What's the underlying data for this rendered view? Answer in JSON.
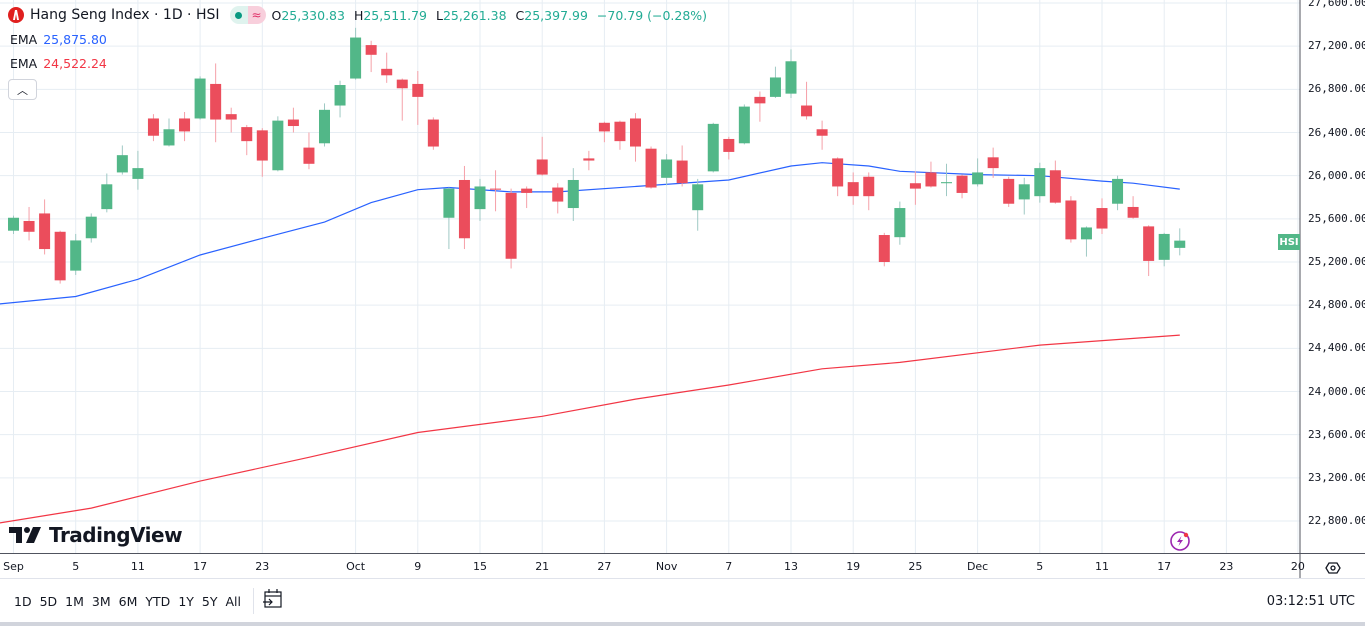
{
  "header": {
    "title": "Hang Seng Index · 1D · HSI",
    "ohlc": {
      "o_label": "O",
      "o": "25,330.83",
      "h_label": "H",
      "h": "25,511.79",
      "l_label": "L",
      "l": "25,261.38",
      "c_label": "C",
      "c": "25,397.99",
      "change": "−70.79 (−0.28%)"
    },
    "market_status_icon": "green-dot-icon",
    "data_icon": "approx-icon"
  },
  "indicators": [
    {
      "label": "EMA",
      "value": "25,875.80",
      "color": "#2962ff"
    },
    {
      "label": "EMA",
      "value": "24,522.24",
      "color": "#f23645"
    }
  ],
  "collapse_icon": "chevron-up-icon",
  "watermark": "TradingView",
  "price_badge": "HSI",
  "colors": {
    "up": "#52b788",
    "down": "#eb4d5c",
    "grid": "#e6edf3"
  },
  "chart_data": {
    "type": "candlestick",
    "symbol": "HSI",
    "ylim": [
      22800,
      27600
    ],
    "y_ticks": [
      "27,600.00",
      "27,200.00",
      "26,800.00",
      "26,400.00",
      "26,000.00",
      "25,600.00",
      "25,200.00",
      "24,800.00",
      "24,400.00",
      "24,000.00",
      "23,600.00",
      "23,200.00",
      "22,800.00"
    ],
    "x_ticks": [
      "Sep",
      "5",
      "11",
      "17",
      "23",
      "Oct",
      "9",
      "15",
      "21",
      "27",
      "Nov",
      "7",
      "13",
      "19",
      "25",
      "Dec",
      "5",
      "11",
      "17",
      "23",
      "20"
    ],
    "grid": true,
    "ohlc": [
      [
        25490,
        25630,
        25460,
        25610
      ],
      [
        25580,
        25710,
        25400,
        25480
      ],
      [
        25650,
        25780,
        25270,
        25320
      ],
      [
        25480,
        25490,
        25000,
        25030
      ],
      [
        25120,
        25460,
        25080,
        25400
      ],
      [
        25420,
        25650,
        25380,
        25620
      ],
      [
        25690,
        26020,
        25660,
        25920
      ],
      [
        26030,
        26280,
        26010,
        26190
      ],
      [
        25970,
        26230,
        25870,
        26070
      ],
      [
        26530,
        26570,
        26320,
        26370
      ],
      [
        26280,
        26530,
        26270,
        26430
      ],
      [
        26530,
        26590,
        26320,
        26410
      ],
      [
        26530,
        26920,
        26520,
        26900
      ],
      [
        26850,
        27040,
        26310,
        26520
      ],
      [
        26570,
        26630,
        26400,
        26520
      ],
      [
        26450,
        26470,
        26190,
        26320
      ],
      [
        26420,
        26440,
        25990,
        26140
      ],
      [
        26050,
        26550,
        26040,
        26510
      ],
      [
        26520,
        26630,
        26400,
        26460
      ],
      [
        26260,
        26400,
        26060,
        26110
      ],
      [
        26300,
        26670,
        26270,
        26610
      ],
      [
        26650,
        26880,
        26540,
        26840
      ],
      [
        26900,
        27370,
        26890,
        27280
      ],
      [
        27210,
        27250,
        26960,
        27120
      ],
      [
        26990,
        27140,
        26860,
        26930
      ],
      [
        26890,
        26900,
        26510,
        26810
      ],
      [
        26850,
        26970,
        26470,
        26730
      ],
      [
        26520,
        26540,
        26240,
        26270
      ],
      [
        25610,
        25890,
        25320,
        25880
      ],
      [
        25960,
        26090,
        25320,
        25420
      ],
      [
        25690,
        25970,
        25580,
        25900
      ],
      [
        25880,
        26050,
        25670,
        25870
      ],
      [
        25840,
        25880,
        25140,
        25230
      ],
      [
        25880,
        25900,
        25700,
        25840
      ],
      [
        26150,
        26360,
        26000,
        26010
      ],
      [
        25890,
        25930,
        25650,
        25760
      ],
      [
        25700,
        26070,
        25580,
        25960
      ],
      [
        26160,
        26230,
        26050,
        26140
      ],
      [
        26490,
        26500,
        26310,
        26410
      ],
      [
        26500,
        26510,
        26240,
        26320
      ],
      [
        26530,
        26580,
        26130,
        26270
      ],
      [
        26250,
        26270,
        25880,
        25890
      ],
      [
        25980,
        26200,
        25910,
        26150
      ],
      [
        26140,
        26280,
        25900,
        25930
      ],
      [
        25680,
        25970,
        25490,
        25920
      ],
      [
        26040,
        26490,
        26030,
        26480
      ],
      [
        26340,
        26360,
        26150,
        26220
      ],
      [
        26300,
        26660,
        26290,
        26640
      ],
      [
        26730,
        26780,
        26500,
        26670
      ],
      [
        26730,
        27010,
        26720,
        26910
      ],
      [
        26760,
        27170,
        26720,
        27060
      ],
      [
        26650,
        26870,
        26520,
        26550
      ],
      [
        26430,
        26510,
        26240,
        26370
      ],
      [
        26160,
        26170,
        25810,
        25900
      ],
      [
        25940,
        26030,
        25730,
        25810
      ],
      [
        25990,
        26030,
        25680,
        25810
      ],
      [
        25450,
        25470,
        25160,
        25200
      ],
      [
        25430,
        25760,
        25360,
        25700
      ],
      [
        25930,
        26040,
        25730,
        25880
      ],
      [
        26030,
        26130,
        25890,
        25900
      ],
      [
        25930,
        26110,
        25810,
        25940
      ],
      [
        26000,
        26010,
        25790,
        25840
      ],
      [
        25920,
        26160,
        25900,
        26030
      ],
      [
        26170,
        26260,
        25980,
        26070
      ],
      [
        25970,
        25990,
        25710,
        25740
      ],
      [
        25780,
        25980,
        25640,
        25920
      ],
      [
        25810,
        26120,
        25750,
        26070
      ],
      [
        26050,
        26140,
        25740,
        25750
      ],
      [
        25770,
        25810,
        25380,
        25410
      ],
      [
        25410,
        25530,
        25250,
        25520
      ],
      [
        25700,
        25790,
        25460,
        25510
      ],
      [
        25740,
        26000,
        25680,
        25970
      ],
      [
        25710,
        25810,
        25600,
        25610
      ],
      [
        25530,
        25540,
        25070,
        25210
      ],
      [
        25220,
        25470,
        25160,
        25460
      ],
      [
        25330.83,
        25511.79,
        25261.38,
        25397.99
      ]
    ],
    "series": [
      {
        "name": "EMA",
        "color": "#2962ff",
        "points": [
          [
            -1,
            24810
          ],
          [
            4,
            24880
          ],
          [
            8,
            25040
          ],
          [
            12,
            25265
          ],
          [
            16,
            25420
          ],
          [
            20,
            25570
          ],
          [
            23,
            25750
          ],
          [
            26,
            25870
          ],
          [
            28,
            25890
          ],
          [
            32,
            25850
          ],
          [
            35,
            25850
          ],
          [
            41,
            25910
          ],
          [
            46,
            25960
          ],
          [
            50,
            26090
          ],
          [
            52,
            26120
          ],
          [
            55,
            26090
          ],
          [
            57,
            26040
          ],
          [
            62,
            26010
          ],
          [
            66,
            26000
          ],
          [
            70,
            25950
          ],
          [
            72,
            25930
          ],
          [
            75,
            25875.8
          ]
        ]
      },
      {
        "name": "EMA",
        "color": "#f23645",
        "points": [
          [
            -1,
            22780
          ],
          [
            5,
            22920
          ],
          [
            12,
            23170
          ],
          [
            19,
            23390
          ],
          [
            26,
            23620
          ],
          [
            34,
            23770
          ],
          [
            40,
            23930
          ],
          [
            46,
            24060
          ],
          [
            52,
            24210
          ],
          [
            57,
            24270
          ],
          [
            66,
            24430
          ],
          [
            75,
            24522.24
          ]
        ]
      }
    ]
  },
  "toolbar": {
    "ranges": [
      "1D",
      "5D",
      "1M",
      "3M",
      "6M",
      "YTD",
      "1Y",
      "5Y",
      "All"
    ],
    "date_range_icon": "calendar-goto-icon",
    "time": "03:12:51 UTC",
    "settings_icon": "eye-icon",
    "alert_icon": "lightning-icon"
  }
}
